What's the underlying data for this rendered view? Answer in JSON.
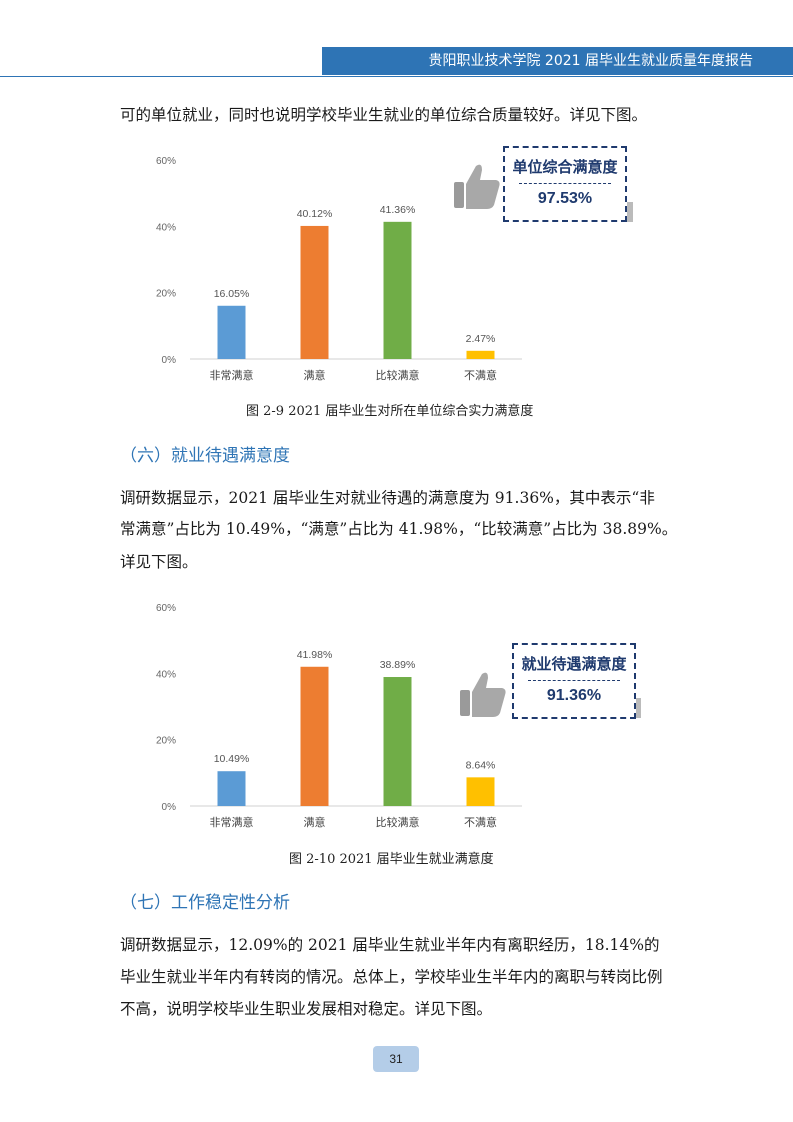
{
  "header": {
    "title": "贵阳职业技术学院 2021 届毕业生就业质量年度报告"
  },
  "intro_paragraph": "可的单位就业，同时也说明学校毕业生就业的单位综合质量较好。详见下图。",
  "figure1": {
    "badge_title": "单位综合满意度",
    "badge_value": "97.53%",
    "caption": "图 2-9 2021 届毕业生对所在单位综合实力满意度"
  },
  "section6": {
    "heading": "（六）就业待遇满意度",
    "paragraph_line1": "调研数据显示，2021 届毕业生对就业待遇的满意度为 91.36%，其中表示“非",
    "paragraph_line2": "常满意”占比为 10.49%，“满意”占比为 41.98%，“比较满意”占比为 38.89%。",
    "paragraph_line3": "详见下图。"
  },
  "figure2": {
    "badge_title": "就业待遇满意度",
    "badge_value": "91.36%",
    "caption": "图 2-10 2021 届毕业生就业满意度"
  },
  "section7": {
    "heading": "（七）工作稳定性分析",
    "paragraph_line1": "调研数据显示，12.09%的 2021 届毕业生就业半年内有离职经历，18.14%的",
    "paragraph_line2": "毕业生就业半年内有转岗的情况。总体上，学校毕业生半年内的离职与转岗比例",
    "paragraph_line3": "不高，说明学校毕业生职业发展相对稳定。详见下图。"
  },
  "page_number": "31",
  "chart_data": [
    {
      "type": "bar",
      "categories": [
        "非常满意",
        "满意",
        "比较满意",
        "不满意"
      ],
      "values": [
        16.05,
        40.12,
        41.36,
        2.47
      ],
      "labels": [
        "16.05%",
        "40.12%",
        "41.36%",
        "2.47%"
      ],
      "colors": [
        "#5b9bd5",
        "#ed7d31",
        "#70ad47",
        "#ffc000"
      ],
      "yticks": [
        "0%",
        "20%",
        "40%",
        "60%"
      ],
      "ylim": [
        0,
        60
      ]
    },
    {
      "type": "bar",
      "categories": [
        "非常满意",
        "满意",
        "比较满意",
        "不满意"
      ],
      "values": [
        10.49,
        41.98,
        38.89,
        8.64
      ],
      "labels": [
        "10.49%",
        "41.98%",
        "38.89%",
        "8.64%"
      ],
      "colors": [
        "#5b9bd5",
        "#ed7d31",
        "#70ad47",
        "#ffc000"
      ],
      "yticks": [
        "0%",
        "20%",
        "40%",
        "60%"
      ],
      "ylim": [
        0,
        60
      ]
    }
  ]
}
